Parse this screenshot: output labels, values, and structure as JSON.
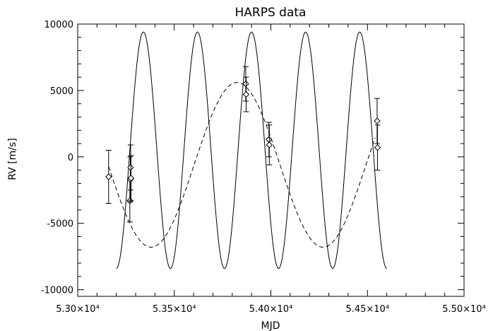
{
  "chart_data": {
    "type": "scatter",
    "title": "HARPS data",
    "xlabel": "MJD",
    "ylabel": "RV [m/s]",
    "xlim": [
      53000,
      55000
    ],
    "ylim": [
      -10500,
      10000
    ],
    "x_ticks": [
      53000,
      53500,
      54000,
      54500,
      55000
    ],
    "x_tick_labels": [
      "5.30×10⁴",
      "5.35×10⁴",
      "5.40×10⁴",
      "5.45×10⁴",
      "5.50×10⁴"
    ],
    "y_ticks": [
      -10000,
      -5000,
      0,
      5000,
      10000
    ],
    "y_tick_labels": [
      "-10000",
      "-5000",
      "0",
      "5000",
      "10000"
    ],
    "grid": false,
    "legend": "none",
    "series": [
      {
        "kind": "points-with-errorbars",
        "marker": "diamond",
        "x": [
          53160,
          53270,
          53272,
          53274,
          53276,
          53870,
          53872,
          53990,
          53992,
          54550,
          54552
        ],
        "y": [
          -1500,
          -3300,
          -1700,
          -800,
          -1600,
          5500,
          4700,
          1300,
          900,
          2700,
          700
        ],
        "yerr": [
          2000,
          1600,
          1700,
          1700,
          1700,
          1300,
          1300,
          1300,
          1500,
          1700,
          1700
        ]
      },
      {
        "kind": "model-curve",
        "style": "solid",
        "x_start": 53200,
        "x_end": 54600,
        "period": 280,
        "amplitude": 8900,
        "offset": 500,
        "phase_peak_x": 53340
      },
      {
        "kind": "model-curve",
        "style": "dashed",
        "x_start": 53160,
        "x_end": 54540,
        "period": 890,
        "amplitude": 6200,
        "offset": -600,
        "phase_peak_x": 53825
      }
    ]
  }
}
